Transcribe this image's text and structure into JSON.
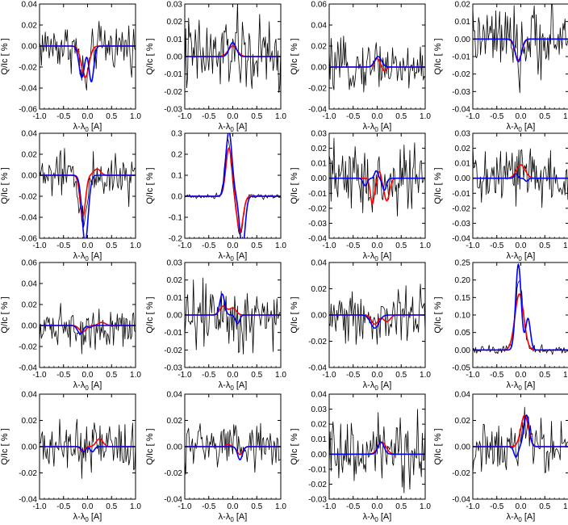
{
  "chart_data": [
    {
      "type": "line",
      "xlabel": "λ-λ0 [A]",
      "ylabel": "Q/Ic [ % ]",
      "xlim": [
        -1.0,
        1.0
      ],
      "ylim": [
        -0.06,
        0.04
      ],
      "xticks": [
        "-1.0",
        "-0.5",
        "0.0",
        "0.5",
        "1.0"
      ],
      "yticks": [
        "0.04",
        "0.02",
        "0.00",
        "-0.02",
        "-0.04",
        "-0.06"
      ],
      "series": [
        {
          "color": "#000000",
          "noise": 0.014,
          "components": [
            [
              -0.05,
              -0.033,
              0.13
            ]
          ]
        },
        {
          "color": "#ff0000",
          "components": [
            [
              -0.05,
              -0.03,
              0.11
            ]
          ]
        },
        {
          "color": "#0000ff",
          "components": [
            [
              -0.12,
              -0.03,
              0.08
            ],
            [
              0.08,
              -0.034,
              0.07
            ]
          ]
        }
      ]
    },
    {
      "type": "line",
      "xlabel": "λ-λ0 [A]",
      "ylabel": "Q/Ic [ % ]",
      "xlim": [
        -1.0,
        1.0
      ],
      "ylim": [
        -0.03,
        0.03
      ],
      "xticks": [
        "-1.0",
        "-0.5",
        "0.0",
        "0.5",
        "1.0"
      ],
      "yticks": [
        "0.03",
        "0.02",
        "0.01",
        "0.00",
        "-0.01",
        "-0.02",
        "-0.03"
      ],
      "series": [
        {
          "color": "#000000",
          "noise": 0.014,
          "components": [
            [
              0.0,
              0.005,
              0.15
            ]
          ]
        },
        {
          "color": "#ff0000",
          "components": [
            [
              0.0,
              0.006,
              0.13
            ]
          ]
        },
        {
          "color": "#0000ff",
          "components": [
            [
              0.0,
              0.008,
              0.1
            ]
          ]
        }
      ]
    },
    {
      "type": "line",
      "xlabel": "λ-λ0 [A]",
      "ylabel": "Q/Ic [ % ]",
      "xlim": [
        -1.0,
        1.0
      ],
      "ylim": [
        -0.04,
        0.06
      ],
      "xticks": [
        "-1.0",
        "-0.5",
        "0.0",
        "0.5",
        "1.0"
      ],
      "yticks": [
        "0.06",
        "0.04",
        "0.02",
        "0.00",
        "-0.02",
        "-0.04"
      ],
      "series": [
        {
          "color": "#000000",
          "noise": 0.014,
          "components": [
            [
              0.0,
              0.006,
              0.15
            ]
          ]
        },
        {
          "color": "#ff0000",
          "components": [
            [
              0.0,
              0.008,
              0.08
            ],
            [
              0.15,
              -0.004,
              0.06
            ]
          ]
        },
        {
          "color": "#0000ff",
          "components": [
            [
              0.02,
              0.01,
              0.1
            ]
          ]
        }
      ]
    },
    {
      "type": "line",
      "xlabel": "λ-λ0 [A]",
      "ylabel": "Q/Ic [ % ]",
      "xlim": [
        -1.0,
        1.0
      ],
      "ylim": [
        -0.04,
        0.02
      ],
      "xticks": [
        "-1.0",
        "-0.5",
        "0.0",
        "0.5",
        "1.0"
      ],
      "yticks": [
        "0.02",
        "0.01",
        "0.00",
        "-0.01",
        "-0.02",
        "-0.03",
        "-0.04"
      ],
      "series": [
        {
          "color": "#000000",
          "noise": 0.012,
          "components": [
            [
              -0.05,
              -0.01,
              0.15
            ]
          ]
        },
        {
          "color": "#ff0000",
          "components": [
            [
              -0.05,
              -0.012,
              0.1
            ]
          ]
        },
        {
          "color": "#0000ff",
          "components": [
            [
              -0.05,
              -0.013,
              0.09
            ]
          ]
        }
      ]
    },
    {
      "type": "line",
      "xlabel": "λ-λ0 [A]",
      "ylabel": "Q/Ic [ % ]",
      "xlim": [
        -1.0,
        1.0
      ],
      "ylim": [
        -0.06,
        0.04
      ],
      "xticks": [
        "-1.0",
        "-0.5",
        "0.0",
        "0.5",
        "1.0"
      ],
      "yticks": [
        "0.04",
        "0.02",
        "0.00",
        "-0.02",
        "-0.04",
        "-0.06"
      ],
      "series": [
        {
          "color": "#000000",
          "noise": 0.014,
          "components": [
            [
              -0.08,
              -0.045,
              0.1
            ]
          ]
        },
        {
          "color": "#ff0000",
          "components": [
            [
              -0.1,
              -0.04,
              0.08
            ],
            [
              0.2,
              0.006,
              0.1
            ]
          ]
        },
        {
          "color": "#0000ff",
          "components": [
            [
              -0.05,
              -0.064,
              0.09
            ]
          ]
        }
      ]
    },
    {
      "type": "line",
      "xlabel": "λ-λ0 [A]",
      "ylabel": "Q/Ic [ % ]",
      "xlim": [
        -1.0,
        1.0
      ],
      "ylim": [
        -0.2,
        0.3
      ],
      "xticks": [
        "-1.0",
        "-0.5",
        "0.0",
        "0.5",
        "1.0"
      ],
      "yticks": [
        "0.3",
        "0.2",
        "0.1",
        "0.0",
        "-0.1",
        "-0.2"
      ],
      "series": [
        {
          "color": "#000000",
          "noise": 0.008,
          "components": [
            [
              -0.1,
              0.27,
              0.09
            ],
            [
              0.15,
              -0.18,
              0.09
            ]
          ]
        },
        {
          "color": "#ff0000",
          "components": [
            [
              -0.08,
              0.23,
              0.09
            ],
            [
              0.15,
              -0.17,
              0.09
            ]
          ]
        },
        {
          "color": "#0000ff",
          "components": [
            [
              -0.08,
              0.31,
              0.09
            ],
            [
              0.2,
              -0.25,
              0.08
            ]
          ]
        }
      ]
    },
    {
      "type": "line",
      "xlabel": "λ-λ0 [A]",
      "ylabel": "Q/Ic [ % ]",
      "xlim": [
        -1.0,
        1.0
      ],
      "ylim": [
        -0.04,
        0.03
      ],
      "xticks": [
        "-1.0",
        "-0.5",
        "0.0",
        "0.5",
        "1.0"
      ],
      "yticks": [
        "0.03",
        "0.02",
        "0.01",
        "0.00",
        "-0.01",
        "-0.02",
        "-0.03",
        "-0.04"
      ],
      "series": [
        {
          "color": "#000000",
          "noise": 0.014,
          "components": [
            [
              -0.1,
              -0.012,
              0.07
            ],
            [
              0.1,
              -0.012,
              0.07
            ]
          ]
        },
        {
          "color": "#ff0000",
          "components": [
            [
              -0.1,
              -0.017,
              0.06
            ],
            [
              0.05,
              0.005,
              0.04
            ],
            [
              0.2,
              -0.015,
              0.08
            ]
          ]
        },
        {
          "color": "#0000ff",
          "components": [
            [
              -0.25,
              -0.005,
              0.06
            ],
            [
              -0.02,
              0.005,
              0.05
            ],
            [
              0.15,
              -0.008,
              0.06
            ]
          ]
        }
      ]
    },
    {
      "type": "line",
      "xlabel": "λ-λ0 [A]",
      "ylabel": "Q/Ic [ % ]",
      "xlim": [
        -1.0,
        1.0
      ],
      "ylim": [
        -0.04,
        0.03
      ],
      "xticks": [
        "-1.0",
        "-0.5",
        "0.0",
        "0.5",
        "1.0"
      ],
      "yticks": [
        "0.03",
        "0.02",
        "0.01",
        "0.00",
        "-0.01",
        "-0.02",
        "-0.03",
        "-0.04"
      ],
      "series": [
        {
          "color": "#000000",
          "noise": 0.014,
          "components": [
            [
              0.0,
              0.006,
              0.18
            ]
          ]
        },
        {
          "color": "#ff0000",
          "components": [
            [
              0.0,
              0.009,
              0.13
            ]
          ]
        },
        {
          "color": "#0000ff",
          "components": [
            [
              -0.1,
              0.003,
              0.05
            ],
            [
              0.12,
              -0.002,
              0.05
            ]
          ]
        }
      ]
    },
    {
      "type": "line",
      "xlabel": "λ-λ0 [A]",
      "ylabel": "Q/Ic [ % ]",
      "xlim": [
        -1.0,
        1.0
      ],
      "ylim": [
        -0.04,
        0.06
      ],
      "xticks": [
        "-1.0",
        "-0.5",
        "0.0",
        "0.5",
        "1.0"
      ],
      "yticks": [
        "0.06",
        "0.04",
        "0.02",
        "0.00",
        "-0.02",
        "-0.04"
      ],
      "series": [
        {
          "color": "#000000",
          "noise": 0.012,
          "components": [
            [
              -0.1,
              -0.005,
              0.15
            ]
          ]
        },
        {
          "color": "#ff0000",
          "components": [
            [
              -0.1,
              -0.006,
              0.1
            ],
            [
              0.3,
              0.003,
              0.1
            ]
          ]
        },
        {
          "color": "#0000ff",
          "components": [
            [
              -0.15,
              -0.008,
              0.08
            ],
            [
              0.05,
              -0.002,
              0.05
            ]
          ]
        }
      ]
    },
    {
      "type": "line",
      "xlabel": "λ-λ0 [A]",
      "ylabel": "Q/Ic [ % ]",
      "xlim": [
        -1.0,
        1.0
      ],
      "ylim": [
        -0.03,
        0.03
      ],
      "xticks": [
        "-1.0",
        "-0.5",
        "0.0",
        "0.5",
        "1.0"
      ],
      "yticks": [
        "0.03",
        "0.02",
        "0.01",
        "0.00",
        "-0.01",
        "-0.02",
        "-0.03"
      ],
      "series": [
        {
          "color": "#000000",
          "noise": 0.013,
          "components": [
            [
              -0.22,
              0.01,
              0.1
            ],
            [
              0.05,
              -0.003,
              0.1
            ]
          ]
        },
        {
          "color": "#ff0000",
          "components": [
            [
              -0.2,
              0.005,
              0.1
            ],
            [
              0.0,
              0.004,
              0.1
            ]
          ]
        },
        {
          "color": "#0000ff",
          "components": [
            [
              -0.22,
              0.012,
              0.07
            ],
            [
              0.1,
              -0.005,
              0.06
            ]
          ]
        }
      ]
    },
    {
      "type": "line",
      "xlabel": "λ-λ0 [A]",
      "ylabel": "Q/Ic [ % ]",
      "xlim": [
        -1.0,
        1.0
      ],
      "ylim": [
        -0.04,
        0.04
      ],
      "xticks": [
        "-1.0",
        "-0.5",
        "0.0",
        "0.5",
        "1.0"
      ],
      "yticks": [
        "0.04",
        "0.02",
        "0.00",
        "-0.02",
        "-0.04"
      ],
      "series": [
        {
          "color": "#000000",
          "noise": 0.013,
          "components": [
            [
              0.0,
              -0.006,
              0.15
            ]
          ]
        },
        {
          "color": "#ff0000",
          "components": [
            [
              -0.05,
              -0.007,
              0.1
            ],
            [
              0.2,
              -0.005,
              0.1
            ]
          ]
        },
        {
          "color": "#0000ff",
          "components": [
            [
              -0.05,
              -0.01,
              0.12
            ]
          ]
        }
      ]
    },
    {
      "type": "line",
      "xlabel": "λ-λ0 [A]",
      "ylabel": "Q/Ic [ % ]",
      "xlim": [
        -1.0,
        1.0
      ],
      "ylim": [
        -0.05,
        0.25
      ],
      "xticks": [
        "-1.0",
        "-0.5",
        "0.0",
        "0.5",
        "1.0"
      ],
      "yticks": [
        "0.25",
        "0.20",
        "0.15",
        "0.10",
        "0.05",
        "0.00",
        "-0.05"
      ],
      "series": [
        {
          "color": "#000000",
          "noise": 0.008,
          "components": [
            [
              -0.03,
              0.2,
              0.11
            ]
          ]
        },
        {
          "color": "#ff0000",
          "components": [
            [
              -0.03,
              0.16,
              0.13
            ]
          ]
        },
        {
          "color": "#0000ff",
          "components": [
            [
              -0.05,
              0.245,
              0.08
            ],
            [
              0.15,
              0.09,
              0.07
            ]
          ]
        }
      ]
    },
    {
      "type": "line",
      "xlabel": "λ-λ0 [A]",
      "ylabel": "Q/Ic [ % ]",
      "xlim": [
        -1.0,
        1.0
      ],
      "ylim": [
        -0.04,
        0.04
      ],
      "xticks": [
        "-1.0",
        "-0.5",
        "0.0",
        "0.5",
        "1.0"
      ],
      "yticks": [
        "0.04",
        "0.02",
        "0.00",
        "-0.02",
        "-0.04"
      ],
      "series": [
        {
          "color": "#000000",
          "noise": 0.012,
          "components": [
            [
              -0.05,
              -0.005,
              0.15
            ]
          ]
        },
        {
          "color": "#ff0000",
          "components": [
            [
              -0.1,
              -0.004,
              0.06
            ],
            [
              0.25,
              0.006,
              0.1
            ]
          ]
        },
        {
          "color": "#0000ff",
          "components": [
            [
              -0.08,
              -0.004,
              0.06
            ],
            [
              0.1,
              -0.004,
              0.06
            ]
          ]
        }
      ]
    },
    {
      "type": "line",
      "xlabel": "λ-λ0 [A]",
      "ylabel": "Q/Ic [ % ]",
      "xlim": [
        -1.0,
        1.0
      ],
      "ylim": [
        -0.04,
        0.04
      ],
      "xticks": [
        "-1.0",
        "-0.5",
        "0.0",
        "0.5",
        "1.0"
      ],
      "yticks": [
        "0.04",
        "0.02",
        "0.00",
        "-0.02",
        "-0.04"
      ],
      "series": [
        {
          "color": "#000000",
          "noise": 0.012,
          "components": [
            [
              0.1,
              -0.005,
              0.15
            ]
          ]
        },
        {
          "color": "#ff0000",
          "components": [
            [
              -0.1,
              0.002,
              0.06
            ],
            [
              0.15,
              -0.006,
              0.08
            ]
          ]
        },
        {
          "color": "#0000ff",
          "components": [
            [
              0.15,
              -0.01,
              0.07
            ]
          ]
        }
      ]
    },
    {
      "type": "line",
      "xlabel": "λ-λ0 [A]",
      "ylabel": "Q/Ic [ % ]",
      "xlim": [
        -1.0,
        1.0
      ],
      "ylim": [
        -0.03,
        0.04
      ],
      "xticks": [
        "-1.0",
        "-0.5",
        "0.0",
        "0.5",
        "1.0"
      ],
      "yticks": [
        "0.04",
        "0.03",
        "0.02",
        "0.01",
        "0.00",
        "-0.01",
        "-0.02",
        "-0.03"
      ],
      "series": [
        {
          "color": "#000000",
          "noise": 0.014,
          "components": [
            [
              0.05,
              0.006,
              0.15
            ]
          ]
        },
        {
          "color": "#ff0000",
          "components": [
            [
              0.1,
              0.008,
              0.12
            ]
          ]
        },
        {
          "color": "#0000ff",
          "components": [
            [
              0.08,
              0.008,
              0.09
            ]
          ]
        }
      ]
    },
    {
      "type": "line",
      "xlabel": "λ-λ0 [A]",
      "ylabel": "Q/Ic [ % ]",
      "xlim": [
        -1.0,
        1.0
      ],
      "ylim": [
        -0.04,
        0.04
      ],
      "xticks": [
        "-1.0",
        "-0.5",
        "0.0",
        "0.5",
        "1.0"
      ],
      "yticks": [
        "0.04",
        "0.02",
        "0.00",
        "-0.02",
        "-0.04"
      ],
      "series": [
        {
          "color": "#000000",
          "noise": 0.012,
          "components": [
            [
              0.1,
              0.022,
              0.1
            ]
          ]
        },
        {
          "color": "#ff0000",
          "components": [
            [
              0.08,
              0.024,
              0.11
            ]
          ]
        },
        {
          "color": "#0000ff",
          "components": [
            [
              -0.1,
              -0.008,
              0.06
            ],
            [
              0.12,
              0.024,
              0.08
            ]
          ]
        }
      ]
    }
  ]
}
